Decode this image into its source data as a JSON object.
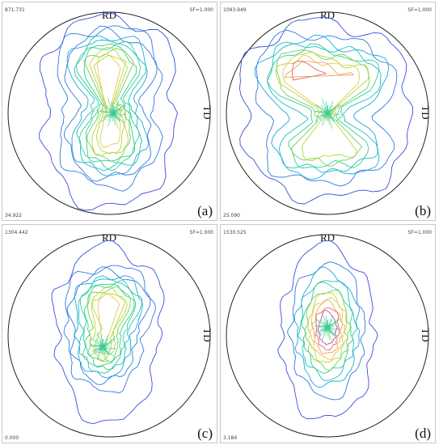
{
  "panels": [
    {
      "id": "a",
      "label": "(a)",
      "max_value": "871.731",
      "min_value": "34.922",
      "sf": "SF=1.000",
      "rd_label": "RD",
      "td_label": "TD"
    },
    {
      "id": "b",
      "label": "(b)",
      "max_value": "1093.949",
      "min_value": "25.090",
      "sf": "SF=1.000",
      "rd_label": "RD",
      "td_label": "TD"
    },
    {
      "id": "c",
      "label": "(c)",
      "max_value": "1304.442",
      "min_value": "0.000",
      "sf": "SF=1.000",
      "rd_label": "RD",
      "td_label": "TD"
    },
    {
      "id": "d",
      "label": "(d)",
      "max_value": "1530.525",
      "min_value": "3.184",
      "sf": "SF=1.000",
      "rd_label": "RD",
      "td_label": "TD"
    }
  ],
  "contour_colors": [
    "#3b4fd8",
    "#2f7be0",
    "#1fa6d8",
    "#16c2c0",
    "#2ecf8f",
    "#6fd35a",
    "#b5d83a",
    "#e8c84a",
    "#f0a35a",
    "#e86a5a",
    "#c94bb0"
  ]
}
